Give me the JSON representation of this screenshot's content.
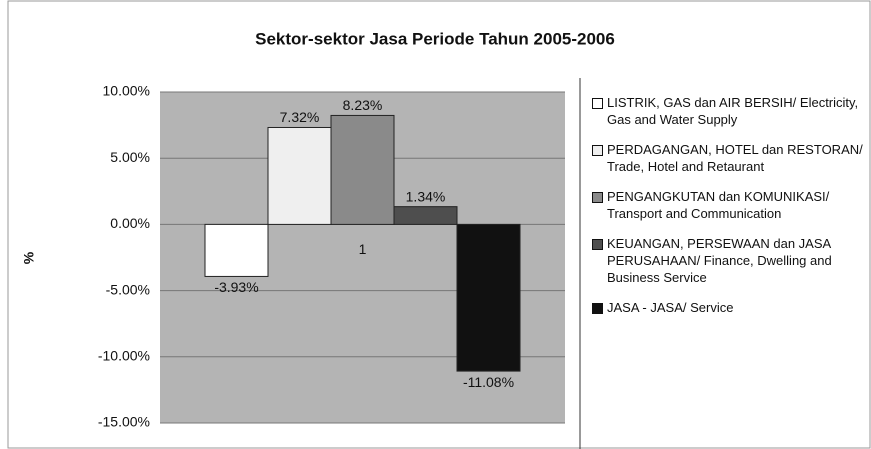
{
  "chart_data": {
    "type": "bar",
    "title": "Sektor-sektor Jasa Periode Tahun 2005-2006",
    "y_label": "%",
    "categories": [
      "1"
    ],
    "series": [
      {
        "name": "LISTRIK, GAS dan AIR BERSIH/ Electricity, Gas and Water Supply",
        "color": "#ffffff",
        "values": [
          -3.93
        ],
        "value_labels": [
          "-3.93%"
        ]
      },
      {
        "name": "PERDAGANGAN, HOTEL dan RESTORAN/ Trade, Hotel and Retaurant",
        "color": "#efefef",
        "values": [
          7.32
        ],
        "value_labels": [
          "7.32%"
        ]
      },
      {
        "name": "PENGANGKUTAN dan KOMUNIKASI/ Transport and Communication",
        "color": "#8a8a8a",
        "values": [
          8.23
        ],
        "value_labels": [
          "8.23%"
        ]
      },
      {
        "name": "KEUANGAN, PERSEWAAN dan JASA PERUSAHAAN/ Finance, Dwelling and Business Service",
        "color": "#4e4e4e",
        "values": [
          1.34
        ],
        "value_labels": [
          "1.34%"
        ]
      },
      {
        "name": "JASA - JASA/ Service",
        "color": "#111111",
        "values": [
          -11.08
        ],
        "value_labels": [
          "-11.08%"
        ]
      }
    ],
    "ylim": [
      -15,
      10
    ],
    "yticks": [
      {
        "value": 10,
        "label": "10.00%"
      },
      {
        "value": 5,
        "label": "5.00%"
      },
      {
        "value": 0,
        "label": "0.00%"
      },
      {
        "value": -5,
        "label": "-5.00%"
      },
      {
        "value": -10,
        "label": "-10.00%"
      },
      {
        "value": -15,
        "label": "-15.00%"
      }
    ],
    "grid": true,
    "legend": "right"
  }
}
